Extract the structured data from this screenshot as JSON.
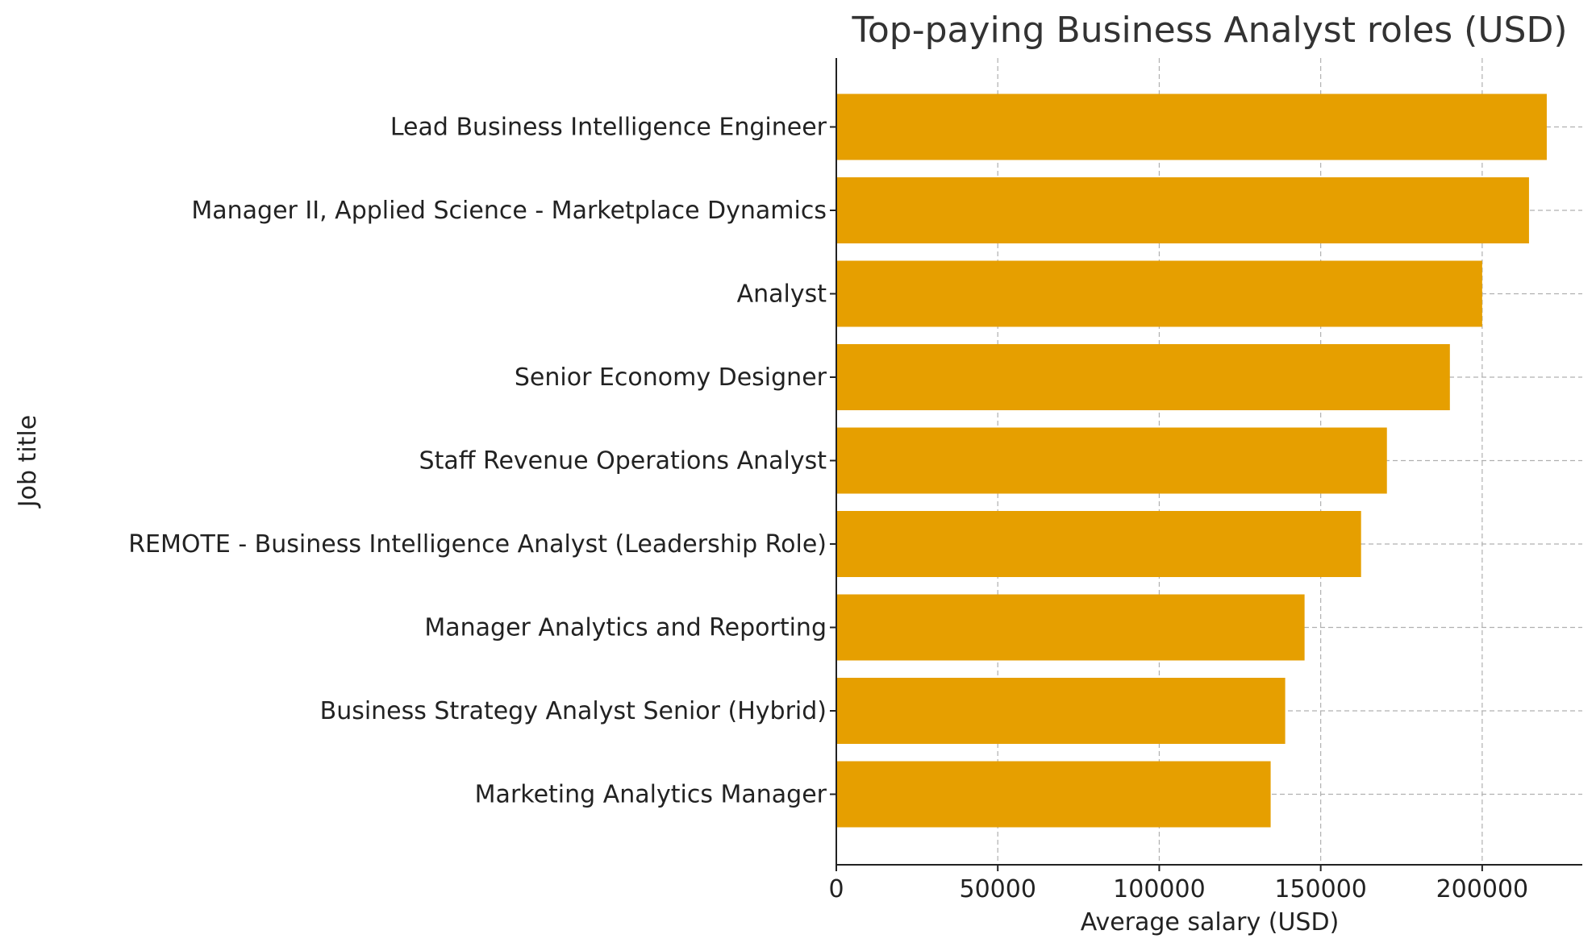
{
  "chart_data": {
    "type": "bar",
    "orientation": "horizontal",
    "title": "Top-paying Business Analyst roles (USD)",
    "xlabel": "Average salary (USD)",
    "ylabel": "Job title",
    "categories": [
      "Lead Business Intelligence Engineer",
      "Manager II, Applied Science - Marketplace Dynamics",
      "Analyst",
      "Senior Economy Designer",
      "Staff Revenue Operations Analyst",
      "REMOTE - Business Intelligence Analyst (Leadership Role)",
      "Manager Analytics and Reporting",
      "Business Strategy Analyst Senior (Hybrid)",
      "Marketing Analytics Manager"
    ],
    "values": [
      220000,
      214500,
      200000,
      190000,
      170500,
      162500,
      145000,
      139000,
      134500
    ],
    "xlim": [
      0,
      231000
    ],
    "xticks": [
      0,
      50000,
      100000,
      150000,
      200000
    ],
    "grid": true,
    "bar_color": "#E69F00",
    "grid_color": "#b0b0b0",
    "axis_color": "#222222"
  }
}
